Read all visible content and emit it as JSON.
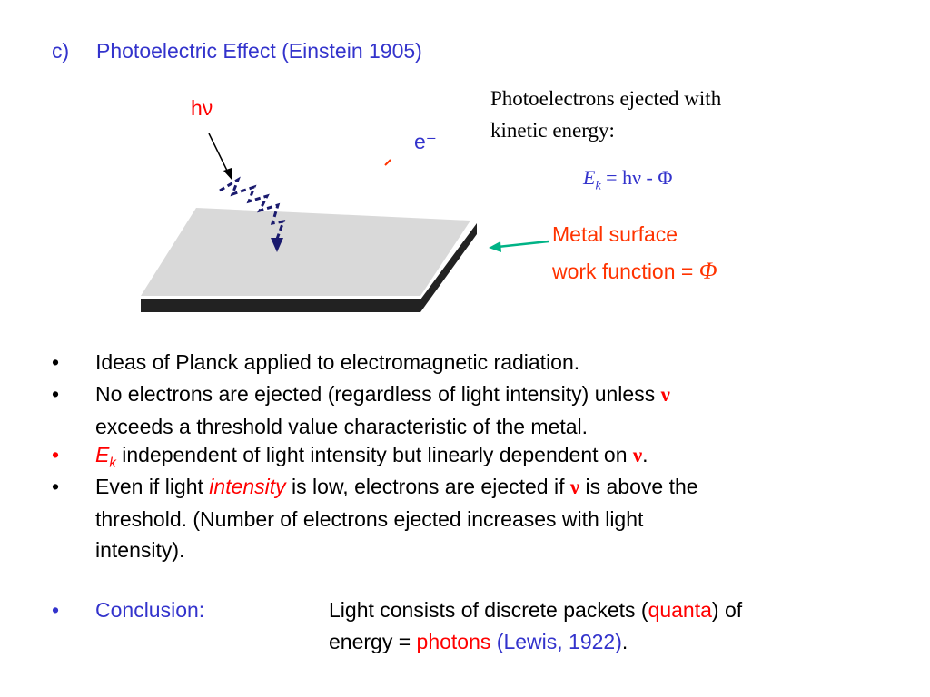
{
  "heading": {
    "label": "c)",
    "title": "Photoelectric Effect (Einstein 1905)"
  },
  "diagram": {
    "photon": "hν",
    "electron": "e⁻",
    "caption": [
      "Photoelectrons ejected with",
      "kinetic energy:"
    ],
    "equation": {
      "symbol": "E",
      "subscript": "k",
      "rhs": " = hν - Φ"
    },
    "surface": {
      "line1": "Metal surface",
      "line2": "work function = ",
      "symbol": "Φ"
    }
  },
  "bullets": [
    {
      "marker": "•",
      "parts": [
        "Ideas of Planck applied to electromagnetic radiation."
      ]
    },
    {
      "marker": "•",
      "parts": [
        "No electrons are ejected (regardless of light intensity) unless ",
        "ν",
        "exceeds a threshold value characteristic of the metal."
      ]
    },
    {
      "marker": "•",
      "parts": [
        "E",
        "k",
        " independent of light intensity but linearly dependent on ",
        "ν",
        "."
      ]
    },
    {
      "marker": "•",
      "parts": [
        "Even if light ",
        "intensity",
        " is low, electrons are ejected if ",
        "ν",
        " is above the",
        "threshold.  (Number of electrons ejected increases with light",
        "intensity)."
      ]
    }
  ],
  "conclusion": {
    "marker": "•",
    "label": "Conclusion:",
    "parts": [
      "Light consists of discrete packets (",
      "quanta",
      ") of",
      "energy = ",
      "photons",
      " (Lewis, 1922)",
      "."
    ]
  }
}
